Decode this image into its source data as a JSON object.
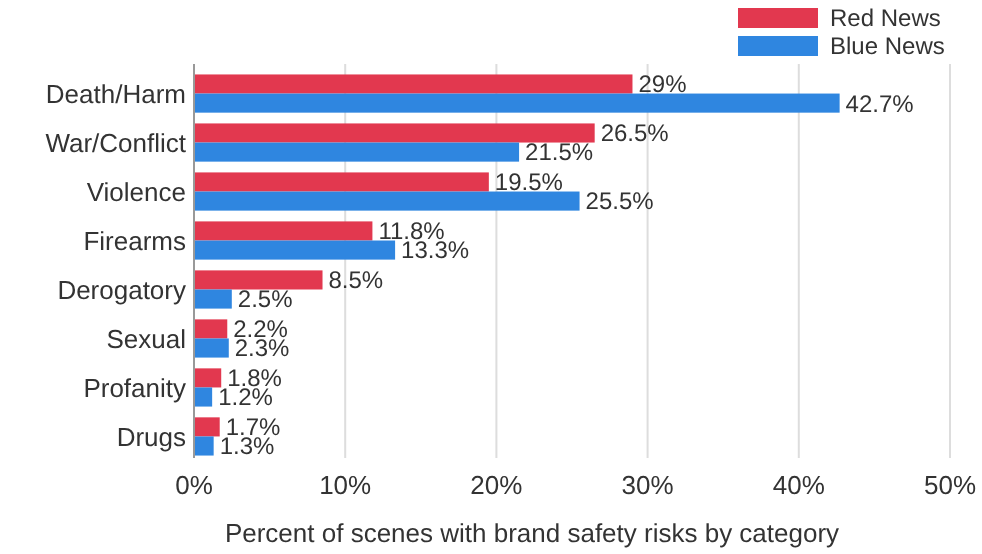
{
  "chart_data": {
    "type": "bar",
    "orientation": "horizontal",
    "xlabel": "Percent of scenes with brand safety risks by category",
    "categories": [
      "Death/Harm",
      "War/Conflict",
      "Violence",
      "Firearms",
      "Derogatory",
      "Sexual",
      "Profanity",
      "Drugs"
    ],
    "series": [
      {
        "name": "Red News",
        "color": "#e2384f",
        "values": [
          29,
          26.5,
          19.5,
          11.8,
          8.5,
          2.2,
          1.8,
          1.7
        ],
        "value_labels": [
          "29%",
          "26.5%",
          "19.5%",
          "11.8%",
          "8.5%",
          "2.2%",
          "1.8%",
          "1.7%"
        ]
      },
      {
        "name": "Blue News",
        "color": "#2f86e0",
        "values": [
          42.7,
          21.5,
          25.5,
          13.3,
          2.5,
          2.3,
          1.2,
          1.3
        ],
        "value_labels": [
          "42.7%",
          "21.5%",
          "25.5%",
          "13.3%",
          "2.5%",
          "2.3%",
          "1.2%",
          "1.3%"
        ]
      }
    ],
    "xlim": [
      0,
      50
    ],
    "xticks": [
      {
        "value": 0,
        "label": "0%"
      },
      {
        "value": 10,
        "label": "10%"
      },
      {
        "value": 20,
        "label": "20%"
      },
      {
        "value": 30,
        "label": "30%"
      },
      {
        "value": 40,
        "label": "40%"
      },
      {
        "value": 50,
        "label": "50%"
      }
    ],
    "grid": "x",
    "legend": "top right"
  }
}
